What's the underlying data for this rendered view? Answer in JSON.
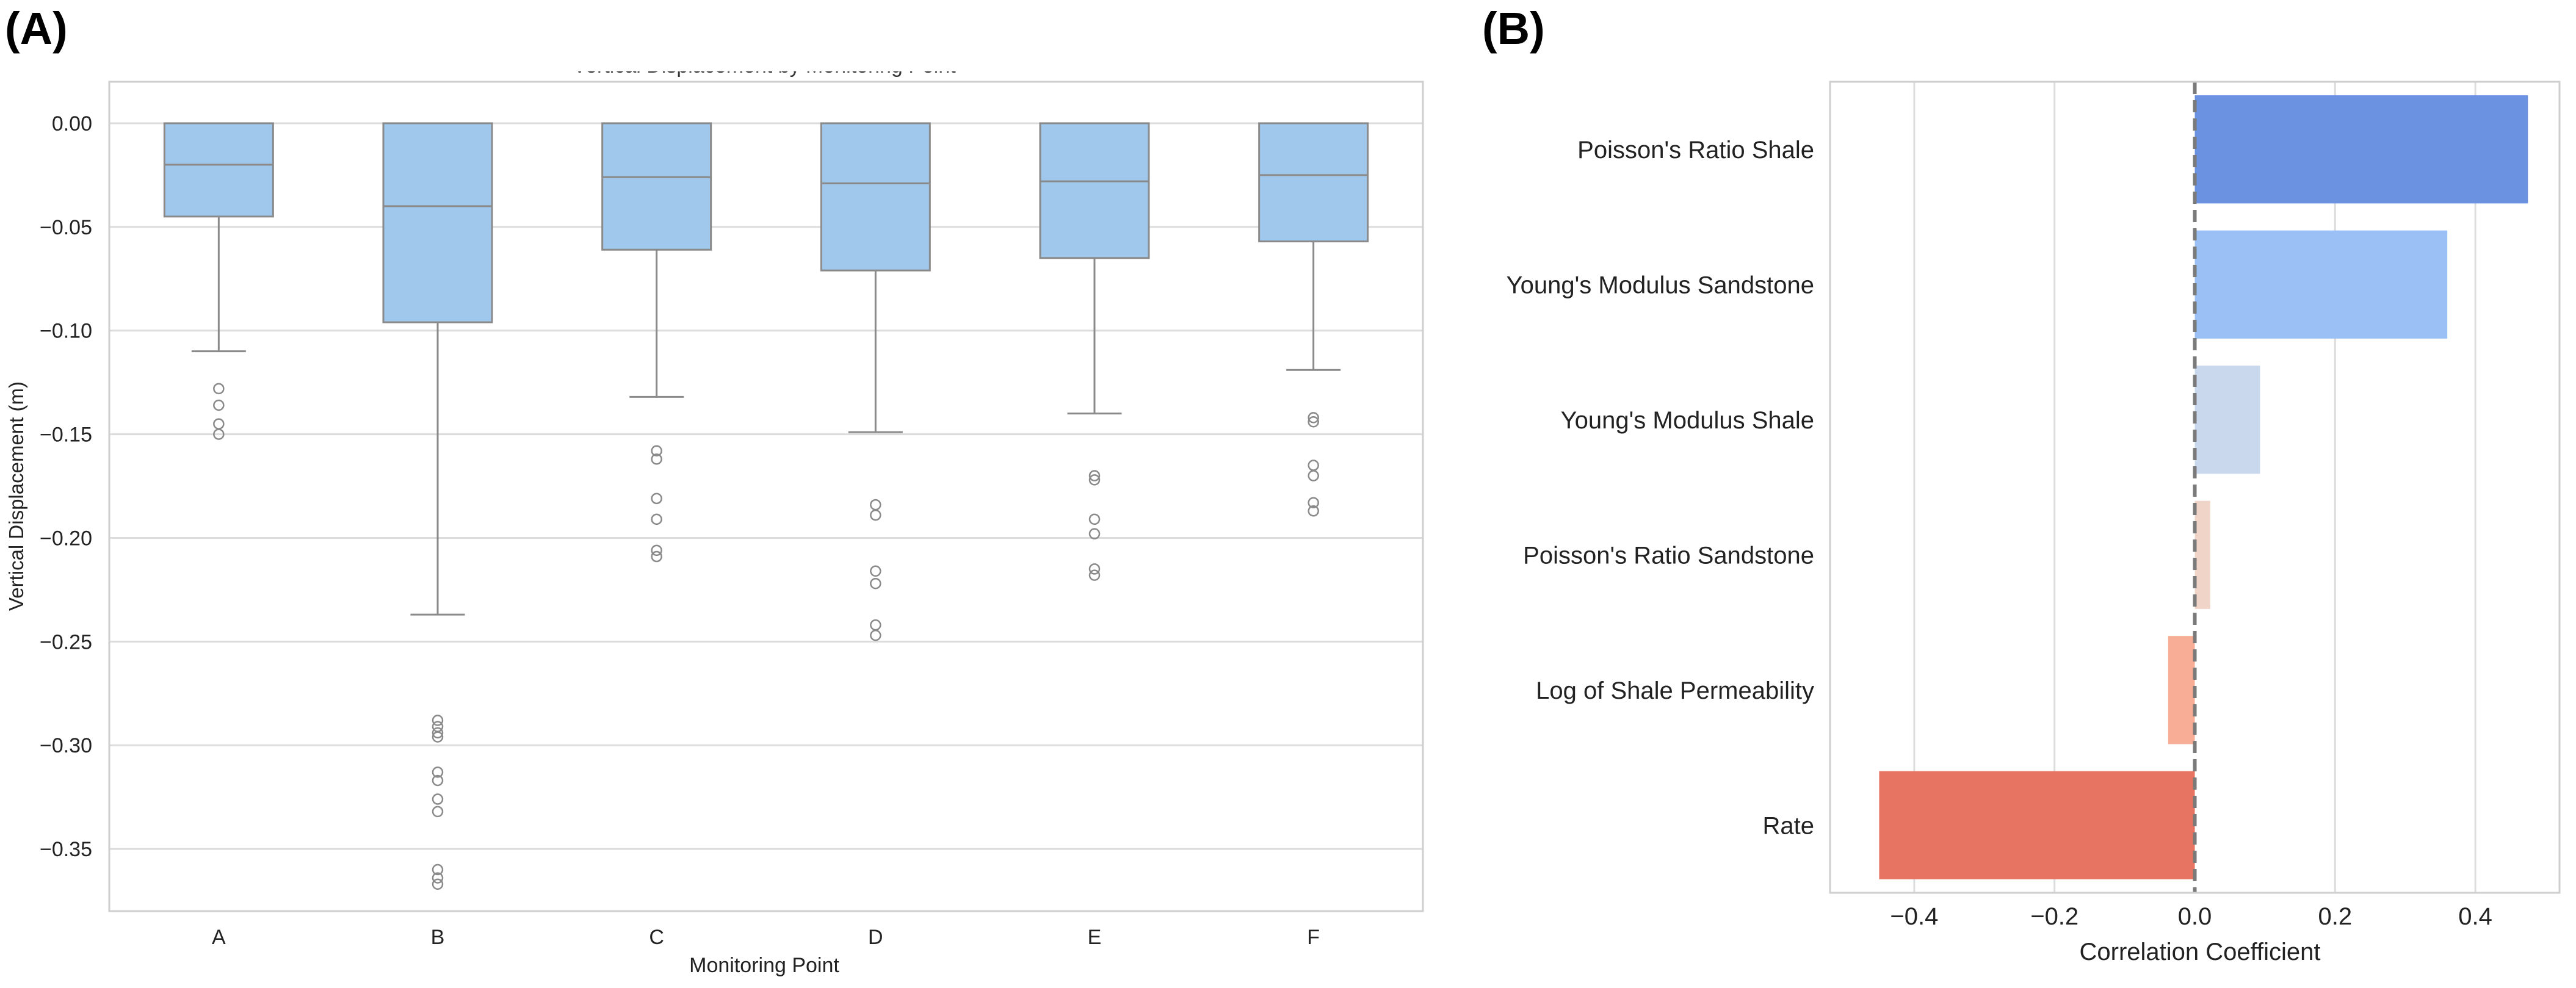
{
  "chart_data": [
    {
      "panel_label": "(A)",
      "type": "box",
      "title": "Vertical Displacement by Monitoring Point",
      "xlabel": "Monitoring Point",
      "ylabel": "Vertical Displacement (m)",
      "ylim": [
        -0.38,
        0.02
      ],
      "yticks": [
        0.0,
        -0.05,
        -0.1,
        -0.15,
        -0.2,
        -0.25,
        -0.3,
        -0.35
      ],
      "ytick_labels": [
        "0.00",
        "−0.05",
        "−0.10",
        "−0.15",
        "−0.20",
        "−0.25",
        "−0.30",
        "−0.35"
      ],
      "grid": true,
      "box_color": "#9fc8ec",
      "categories": [
        "A",
        "B",
        "C",
        "D",
        "E",
        "F"
      ],
      "boxes": [
        {
          "label": "A",
          "whisker_high": 0.0,
          "q3": 0.0,
          "median": -0.02,
          "q1": -0.045,
          "whisker_low": -0.11,
          "outliers": [
            -0.128,
            -0.136,
            -0.145,
            -0.15
          ]
        },
        {
          "label": "B",
          "whisker_high": 0.0,
          "q3": 0.0,
          "median": -0.04,
          "q1": -0.096,
          "whisker_low": -0.237,
          "outliers": [
            -0.288,
            -0.291,
            -0.294,
            -0.296,
            -0.313,
            -0.317,
            -0.326,
            -0.332,
            -0.36,
            -0.364,
            -0.367
          ]
        },
        {
          "label": "C",
          "whisker_high": 0.0,
          "q3": 0.0,
          "median": -0.026,
          "q1": -0.061,
          "whisker_low": -0.132,
          "outliers": [
            -0.158,
            -0.162,
            -0.181,
            -0.191,
            -0.206,
            -0.209
          ]
        },
        {
          "label": "D",
          "whisker_high": 0.0,
          "q3": 0.0,
          "median": -0.029,
          "q1": -0.071,
          "whisker_low": -0.149,
          "outliers": [
            -0.184,
            -0.189,
            -0.216,
            -0.222,
            -0.242,
            -0.247
          ]
        },
        {
          "label": "E",
          "whisker_high": 0.0,
          "q3": 0.0,
          "median": -0.028,
          "q1": -0.065,
          "whisker_low": -0.14,
          "outliers": [
            -0.17,
            -0.172,
            -0.191,
            -0.198,
            -0.215,
            -0.218
          ]
        },
        {
          "label": "F",
          "whisker_high": 0.0,
          "q3": 0.0,
          "median": -0.025,
          "q1": -0.057,
          "whisker_low": -0.119,
          "outliers": [
            -0.142,
            -0.144,
            -0.165,
            -0.17,
            -0.183,
            -0.187
          ]
        }
      ]
    },
    {
      "panel_label": "(B)",
      "type": "bar",
      "orientation": "horizontal",
      "xlabel": "Correlation Coefficient",
      "ylabel": "",
      "xlim": [
        -0.52,
        0.52
      ],
      "xticks": [
        -0.4,
        -0.2,
        0.0,
        0.2,
        0.4
      ],
      "xtick_labels": [
        "−0.4",
        "−0.2",
        "0.0",
        "0.2",
        "0.4"
      ],
      "grid": true,
      "zero_line": "dashed",
      "categories": [
        "Poisson's Ratio Shale",
        "Young's Modulus Sandstone",
        "Young's Modulus Shale",
        "Poisson's Ratio Sandstone",
        "Log of Shale Permeability",
        "Rate"
      ],
      "values": [
        0.475,
        0.36,
        0.093,
        0.022,
        -0.038,
        -0.45
      ],
      "colors": [
        "#6a92e1",
        "#9bc0f5",
        "#cad8ee",
        "#f0d4c8",
        "#f8ae96",
        "#e77462"
      ]
    }
  ]
}
